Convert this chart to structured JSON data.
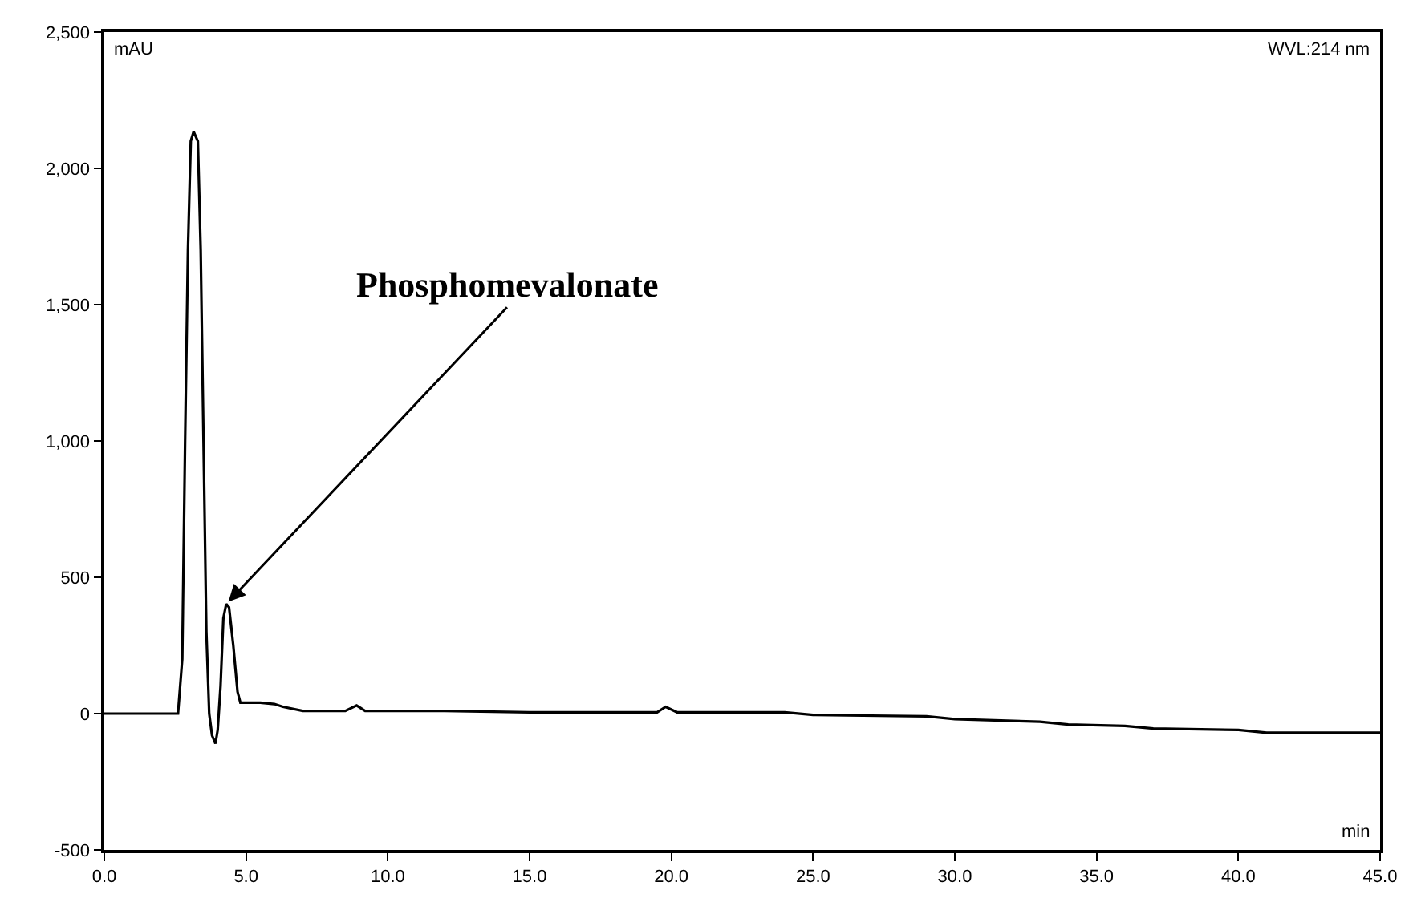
{
  "chart_data": {
    "type": "line",
    "xlabel": "min",
    "ylabel": "mAU",
    "x": [
      0,
      2.6,
      2.75,
      2.85,
      2.95,
      3.05,
      3.15,
      3.3,
      3.4,
      3.5,
      3.6,
      3.7,
      3.8,
      3.92,
      4.0,
      4.1,
      4.2,
      4.3,
      4.4,
      4.55,
      4.7,
      4.8,
      5.5,
      6.0,
      6.3,
      7.0,
      8.5,
      8.9,
      9.2,
      12,
      15,
      19.5,
      19.8,
      20.2,
      24,
      25,
      29,
      30,
      33,
      34,
      36,
      37,
      40,
      41,
      45
    ],
    "series": [
      {
        "color": "#000000",
        "values": [
          0,
          0,
          200,
          1000,
          1700,
          2100,
          2135,
          2100,
          1700,
          1000,
          300,
          0,
          -80,
          -110,
          -60,
          100,
          350,
          402,
          390,
          250,
          80,
          40,
          40,
          35,
          25,
          10,
          10,
          30,
          10,
          10,
          5,
          5,
          25,
          5,
          5,
          -5,
          -10,
          -20,
          -30,
          -40,
          -45,
          -55,
          -60,
          -70,
          -70
        ]
      }
    ],
    "xlim": [
      0,
      45
    ],
    "ylim": [
      -500,
      2500
    ],
    "xticks": [
      {
        "value": 0,
        "label": "0.0"
      },
      {
        "value": 5,
        "label": "5.0"
      },
      {
        "value": 10,
        "label": "10.0"
      },
      {
        "value": 15,
        "label": "15.0"
      },
      {
        "value": 20,
        "label": "20.0"
      },
      {
        "value": 25,
        "label": "25.0"
      },
      {
        "value": 30,
        "label": "30.0"
      },
      {
        "value": 35,
        "label": "35.0"
      },
      {
        "value": 40,
        "label": "40.0"
      },
      {
        "value": 45,
        "label": "45.0"
      }
    ],
    "yticks": [
      {
        "value": -500,
        "label": "-500"
      },
      {
        "value": 0,
        "label": "0"
      },
      {
        "value": 500,
        "label": "500"
      },
      {
        "value": 1000,
        "label": "1,000"
      },
      {
        "value": 1500,
        "label": "1,500"
      },
      {
        "value": 2000,
        "label": "2,000"
      },
      {
        "value": 2500,
        "label": "2,500"
      }
    ],
    "annotations": [
      {
        "text": "Phosphomevalonate",
        "x": 4.3,
        "y": 402
      },
      "WVL:214 nm"
    ],
    "grid": false,
    "legend": false,
    "marker": "none",
    "line_style": "solid"
  }
}
